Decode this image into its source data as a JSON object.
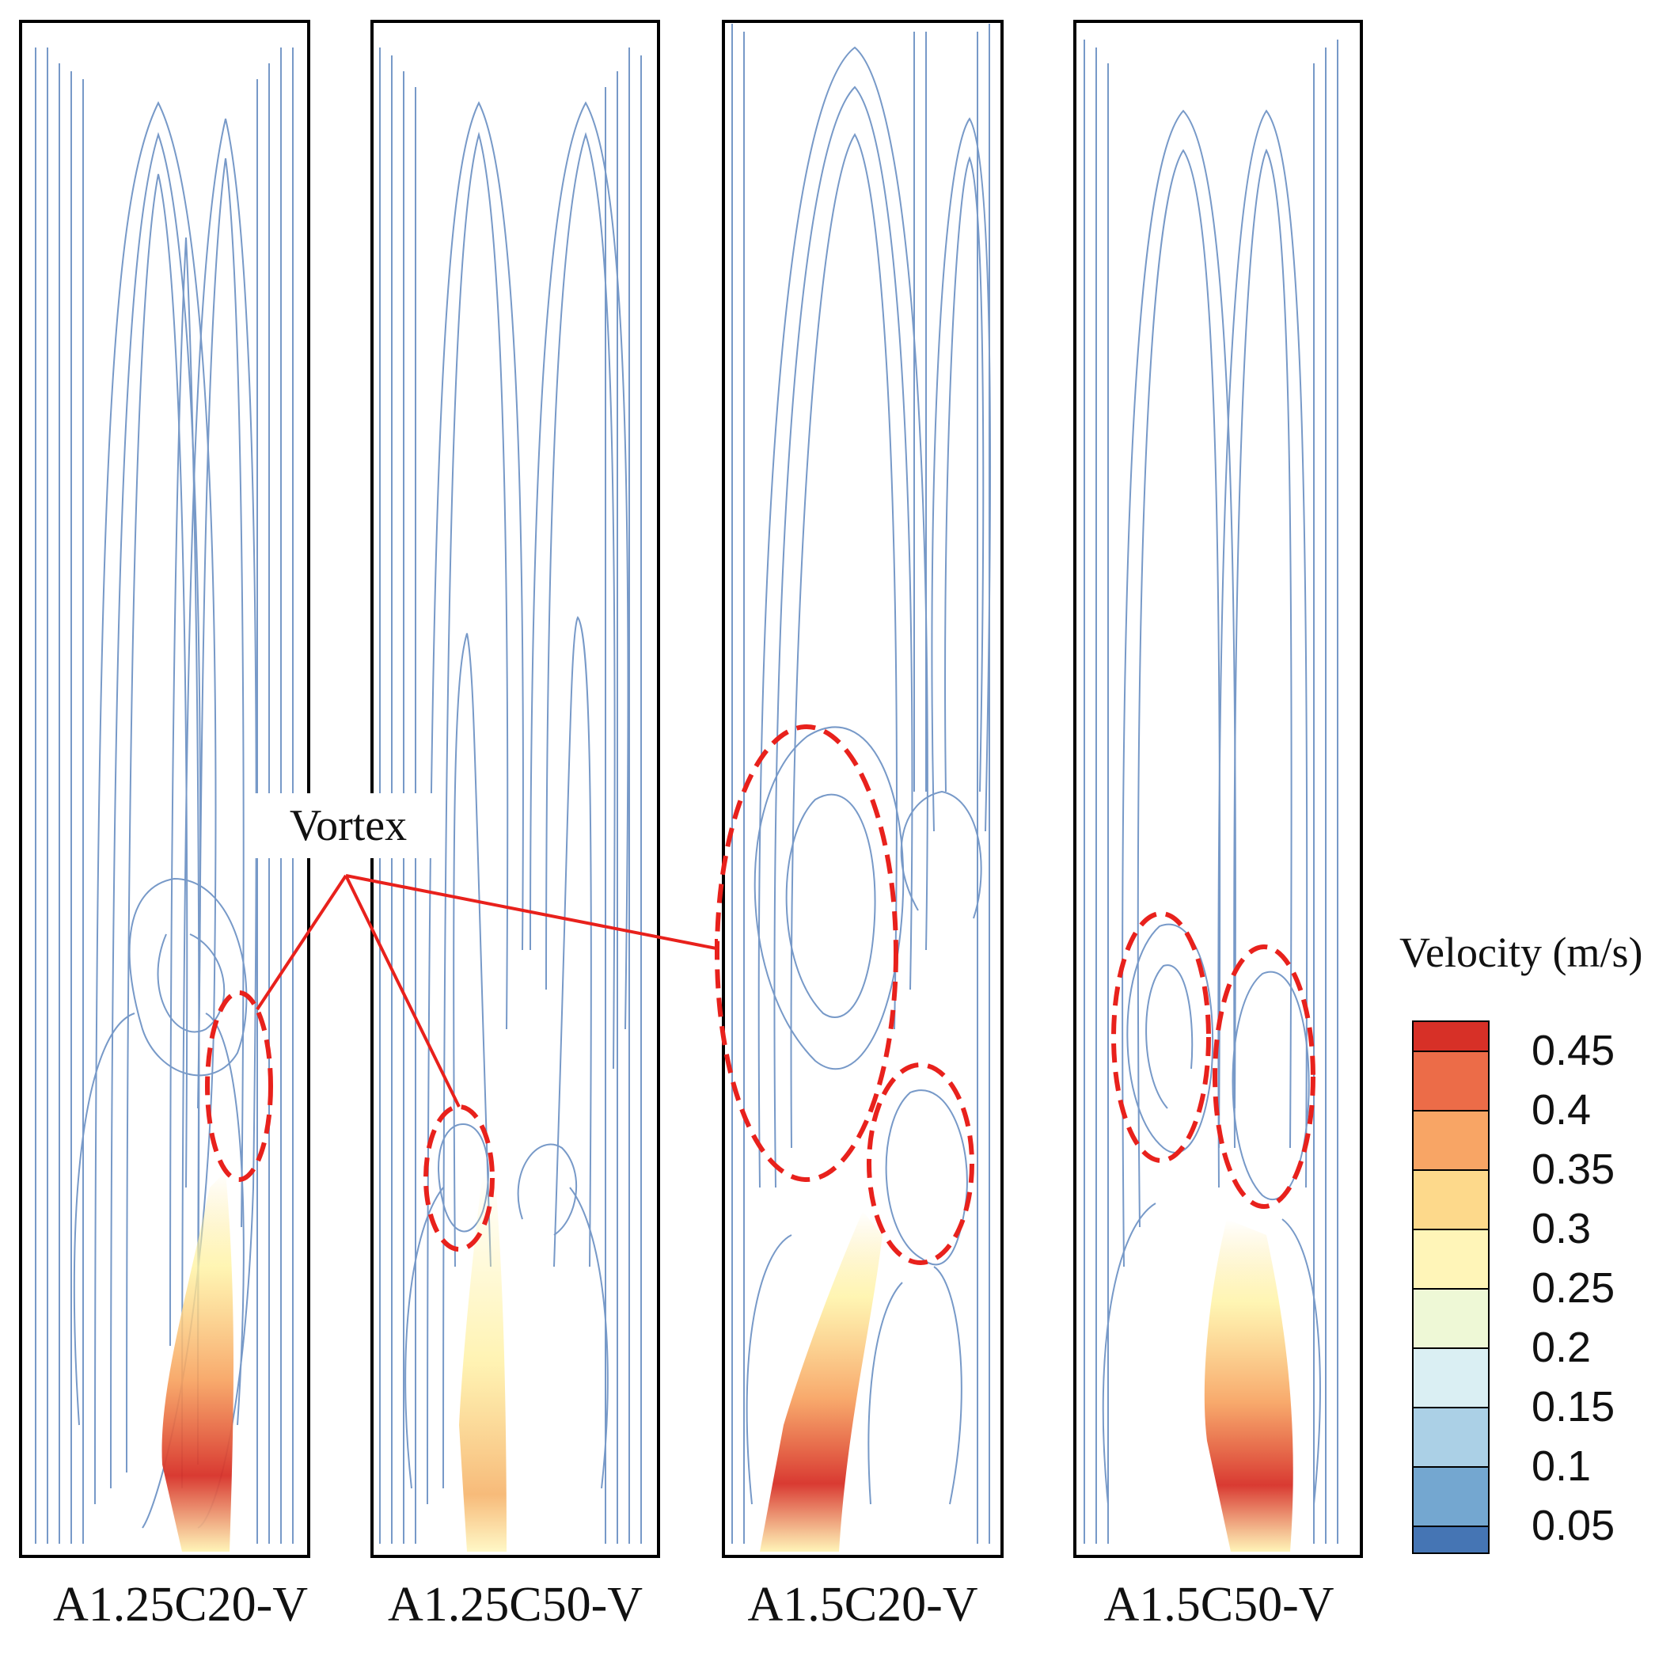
{
  "panels": [
    {
      "label": "A1.25C20-V"
    },
    {
      "label": "A1.25C50-V"
    },
    {
      "label": "A1.5C20-V"
    },
    {
      "label": "A1.5C50-V"
    }
  ],
  "annotation": {
    "label": "Vortex",
    "color": "#e8211c"
  },
  "legend": {
    "title": "Velocity (m/s)",
    "ticks": [
      "0.45",
      "0.4",
      "0.35",
      "0.3",
      "0.25",
      "0.2",
      "0.15",
      "0.1",
      "0.05"
    ],
    "colors": [
      "#d73027",
      "#ec6c48",
      "#f8a565",
      "#fdd98b",
      "#fff5b8",
      "#eef8d6",
      "#daeff3",
      "#abd0e6",
      "#74a7d0",
      "#4575b4"
    ]
  },
  "streamline_color": "#4a78b6"
}
